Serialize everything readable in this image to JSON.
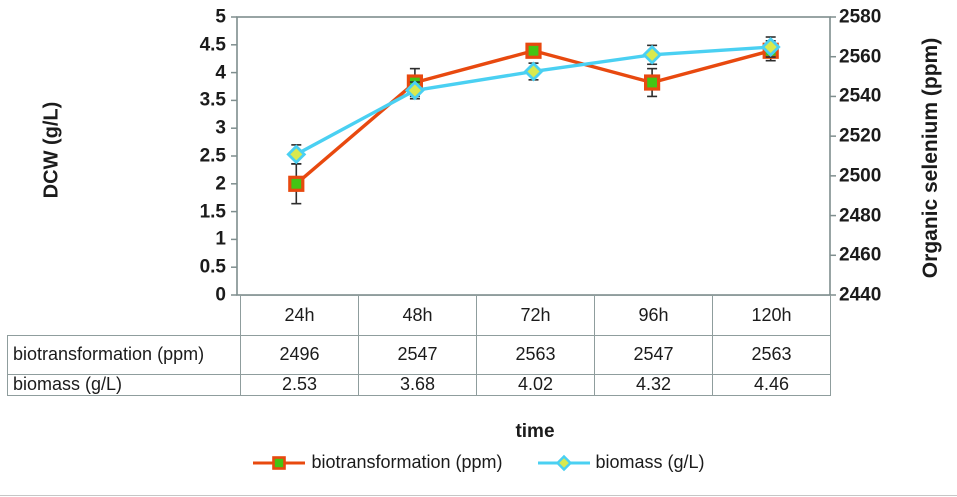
{
  "colors": {
    "axis": "#7f8e8e",
    "table_border": "#8f9d9d",
    "text": "#1b1b1b",
    "error_bar": "#2d2d2d",
    "biotransformation_line": "#e8490f",
    "biotransformation_marker_fill": "#44c414",
    "biomass_line": "#4ad0f2",
    "biomass_marker_fill": "#d9e94e"
  },
  "chart_data": {
    "type": "line",
    "title": "",
    "xlabel": "time",
    "grid": false,
    "legend_position": "bottom",
    "categories": [
      "24h",
      "48h",
      "72h",
      "96h",
      "120h"
    ],
    "left_axis": {
      "label": "DCW (g/L)",
      "min": 0,
      "max": 5,
      "ticks": [
        "5",
        "4.5",
        "4",
        "3.5",
        "3",
        "2.5",
        "2",
        "1.5",
        "1",
        "0.5",
        "0"
      ]
    },
    "right_axis": {
      "label": "Organic selenium (ppm)",
      "min": 2440,
      "max": 2580,
      "ticks": [
        "2580",
        "2560",
        "2540",
        "2520",
        "2500",
        "2480",
        "2460",
        "2440"
      ]
    },
    "series": [
      {
        "name": "biotransformation (ppm)",
        "axis": "right",
        "values": [
          2496,
          2547,
          2563,
          2547,
          2563
        ],
        "errors": [
          10,
          7,
          3,
          7,
          5
        ],
        "line_color": "#e8490f",
        "marker": "square",
        "marker_fill": "#44c414",
        "marker_stroke": "#e8490f"
      },
      {
        "name": "biomass (g/L)",
        "axis": "left",
        "values": [
          2.53,
          3.68,
          4.02,
          4.32,
          4.46
        ],
        "errors": [
          0.17,
          0.15,
          0.15,
          0.17,
          0.18
        ],
        "line_color": "#4ad0f2",
        "marker": "diamond",
        "marker_fill": "#d9e94e",
        "marker_stroke": "#4ad0f2"
      }
    ],
    "legend": [
      "biotransformation (ppm)",
      "biomass (g/L)"
    ]
  },
  "table": {
    "col_headers": [
      "24h",
      "48h",
      "72h",
      "96h",
      "120h"
    ],
    "rows": [
      {
        "label": "biotransformation (ppm)",
        "values": [
          "2496",
          "2547",
          "2563",
          "2547",
          "2563"
        ]
      },
      {
        "label": "biomass (g/L)",
        "values": [
          "2.53",
          "3.68",
          "4.02",
          "4.32",
          "4.46"
        ]
      }
    ]
  }
}
